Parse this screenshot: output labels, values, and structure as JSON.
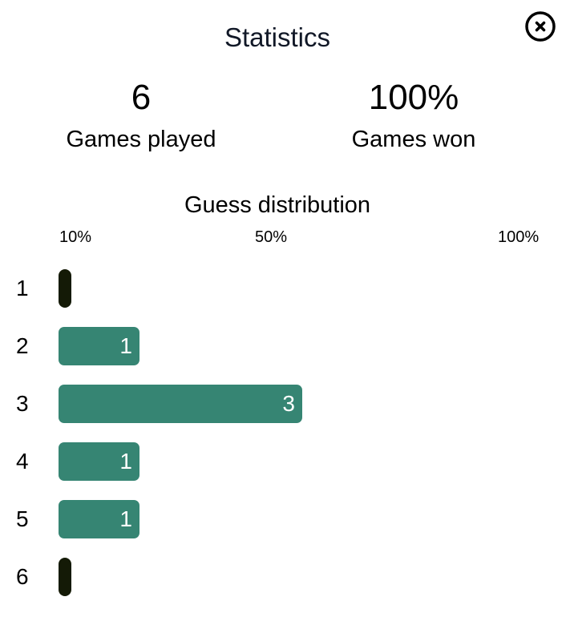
{
  "modal": {
    "title": "Statistics"
  },
  "stats": {
    "games_played": {
      "value": "6",
      "label": "Games played"
    },
    "games_won": {
      "value": "100%",
      "label": "Games won"
    }
  },
  "distribution": {
    "title": "Guess distribution",
    "scale_labels": [
      "10%",
      "50%",
      "100%"
    ],
    "rows": [
      {
        "guess": "1",
        "count": "",
        "fraction": 0
      },
      {
        "guess": "2",
        "count": "1",
        "fraction": 0.1667
      },
      {
        "guess": "3",
        "count": "3",
        "fraction": 0.5
      },
      {
        "guess": "4",
        "count": "1",
        "fraction": 0.1667
      },
      {
        "guess": "5",
        "count": "1",
        "fraction": 0.1667
      },
      {
        "guess": "6",
        "count": "",
        "fraction": 0
      }
    ]
  },
  "colors": {
    "bar_fill": "#368573",
    "empty_bar": "#141a06",
    "title_text": "#111827"
  },
  "icons": {
    "close": "close-circle-icon"
  }
}
